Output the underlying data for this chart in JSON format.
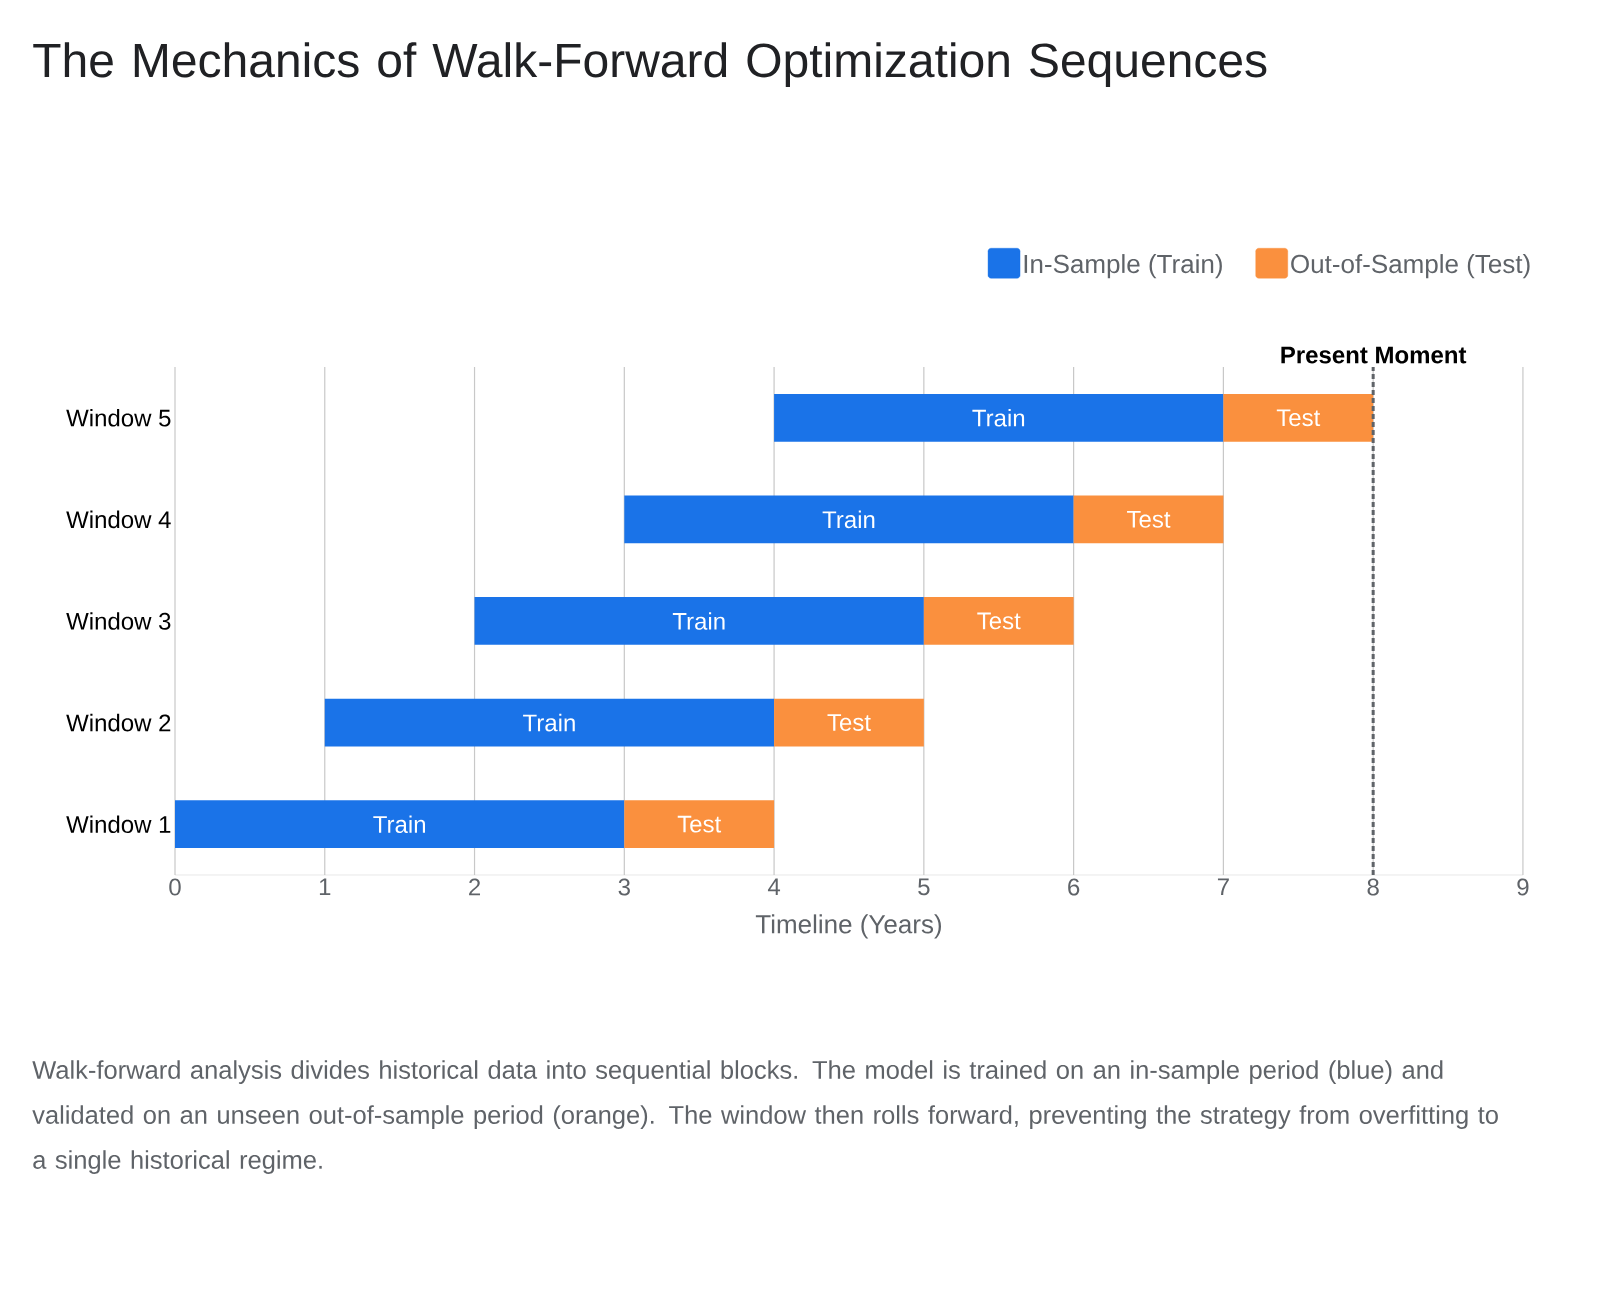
{
  "chart_data": {
    "type": "bar",
    "orientation": "horizontal",
    "title": "The Mechanics of Walk-Forward Optimization Sequences",
    "xlabel": "Timeline (Years)",
    "categories": [
      "Window 5",
      "Window 4",
      "Window 3",
      "Window 2",
      "Window 1"
    ],
    "series": [
      {
        "name": "In-Sample (Train)",
        "color": "#1a73e8",
        "base": [
          4,
          3,
          2,
          1,
          0
        ],
        "values": [
          3,
          3,
          3,
          3,
          3
        ],
        "value_labels": [
          "Train",
          "Train",
          "Train",
          "Train",
          "Train"
        ]
      },
      {
        "name": "Out-of-Sample (Test)",
        "color": "#fa903e",
        "base": [
          7,
          6,
          5,
          4,
          3
        ],
        "values": [
          1,
          1,
          1,
          1,
          1
        ],
        "value_labels": [
          "Test",
          "Test",
          "Test",
          "Test",
          "Test"
        ]
      }
    ],
    "xlim": [
      0,
      9
    ],
    "xticks": [
      0,
      1,
      2,
      3,
      4,
      5,
      6,
      7,
      8,
      9
    ],
    "grid": "x",
    "legend": "top right",
    "ref_lines": [
      {
        "axis": "x",
        "value": 8,
        "label": "Present Moment",
        "color": "#5f6368",
        "line_style": "dashed"
      }
    ],
    "annotations": [
      "Walk-forward analysis divides historical data into sequential blocks. The model is trained on an in-sample period (blue) and validated on an unseen out-of-sample period (orange). The window then rolls forward, preventing the strategy from overfitting to a single historical regime."
    ]
  }
}
